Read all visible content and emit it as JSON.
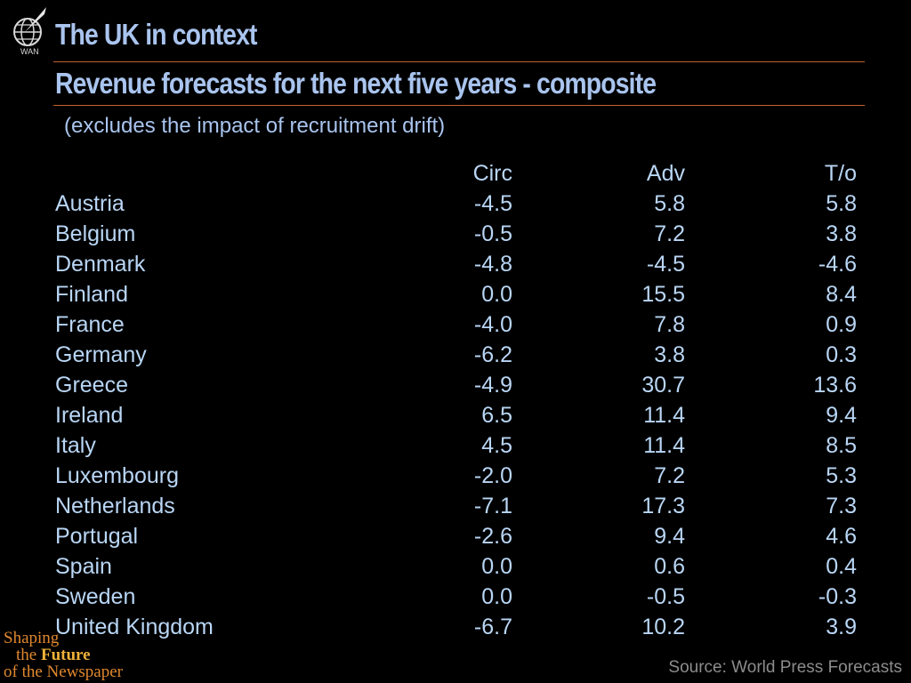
{
  "header": {
    "title": "The UK in context",
    "subtitle": "Revenue forecasts for the next five years - composite",
    "note": "(excludes the impact of recruitment drift)"
  },
  "logo": {
    "icon": "globe-quill-icon",
    "text": "WAN"
  },
  "table": {
    "columns": [
      "Circ",
      "Adv",
      "T/o"
    ],
    "rows": [
      {
        "country": "Austria",
        "circ": "-4.5",
        "adv": "5.8",
        "to": "5.8"
      },
      {
        "country": "Belgium",
        "circ": "-0.5",
        "adv": "7.2",
        "to": "3.8"
      },
      {
        "country": "Denmark",
        "circ": "-4.8",
        "adv": "-4.5",
        "to": "-4.6"
      },
      {
        "country": "Finland",
        "circ": "0.0",
        "adv": "15.5",
        "to": "8.4"
      },
      {
        "country": "France",
        "circ": "-4.0",
        "adv": "7.8",
        "to": "0.9"
      },
      {
        "country": "Germany",
        "circ": "-6.2",
        "adv": "3.8",
        "to": "0.3"
      },
      {
        "country": "Greece",
        "circ": "-4.9",
        "adv": "30.7",
        "to": "13.6"
      },
      {
        "country": "Ireland",
        "circ": "6.5",
        "adv": "11.4",
        "to": "9.4"
      },
      {
        "country": "Italy",
        "circ": "4.5",
        "adv": "11.4",
        "to": "8.5"
      },
      {
        "country": "Luxembourg",
        "circ": "-2.0",
        "adv": "7.2",
        "to": "5.3"
      },
      {
        "country": "Netherlands",
        "circ": "-7.1",
        "adv": "17.3",
        "to": "7.3"
      },
      {
        "country": "Portugal",
        "circ": "-2.6",
        "adv": "9.4",
        "to": "4.6"
      },
      {
        "country": "Spain",
        "circ": "0.0",
        "adv": "0.6",
        "to": "0.4"
      },
      {
        "country": "Sweden",
        "circ": "0.0",
        "adv": "-0.5",
        "to": "-0.3"
      },
      {
        "country": "United Kingdom",
        "circ": "-6.7",
        "adv": "10.2",
        "to": "3.9"
      }
    ]
  },
  "slogan": {
    "line1": "Shaping",
    "line2_prefix": "the ",
    "line2_emphasis": "Future",
    "line3": "of the Newspaper"
  },
  "footer": {
    "source": "Source: World Press Forecasts"
  },
  "colors": {
    "title": "#a9c4ee",
    "country": "#57d957",
    "values": "#b9d6f5",
    "rule": "#c0622a",
    "background": "#000000"
  }
}
